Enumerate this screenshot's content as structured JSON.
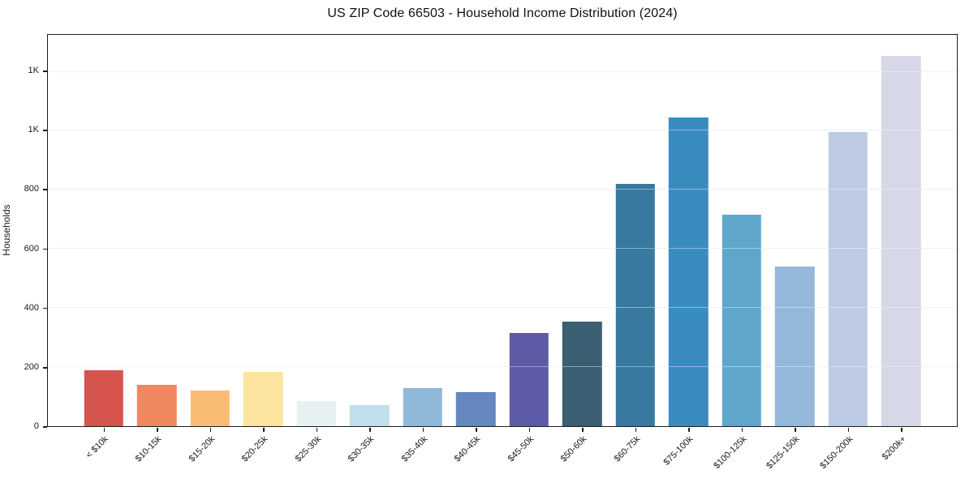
{
  "title": "US ZIP Code 66503 - Household Income Distribution (2024)",
  "y_axis_label": "Households",
  "chart_data": {
    "type": "bar",
    "title": "US ZIP Code 66503 - Household Income Distribution (2024)",
    "xlabel": "",
    "ylabel": "Households",
    "categories": [
      "< $10k",
      "$10-15k",
      "$15-20k",
      "$20-25k",
      "$25-30k",
      "$30-35k",
      "$35-40k",
      "$40-45k",
      "$45-50k",
      "$50-60k",
      "$60-75k",
      "$75-100k",
      "$100-125k",
      "$125-150k",
      "$150-200k",
      "$200k+"
    ],
    "values": [
      190,
      140,
      120,
      185,
      85,
      70,
      130,
      115,
      315,
      355,
      820,
      1045,
      715,
      540,
      995,
      1255
    ],
    "bar_colors": [
      "#d6544e",
      "#f1875f",
      "#fabc74",
      "#fce4a0",
      "#e8f1f2",
      "#bfe0ec",
      "#90b8d8",
      "#6487bf",
      "#5d5ba7",
      "#3a5e72",
      "#37799f",
      "#3a8cc0",
      "#5ea7cb",
      "#93b8d9",
      "#bccbe3",
      "#d7d8e7"
    ],
    "ylim": [
      0,
      1325
    ],
    "yticks": [
      {
        "value": 0,
        "label": "0"
      },
      {
        "value": 200,
        "label": "200"
      },
      {
        "value": 400,
        "label": "400"
      },
      {
        "value": 600,
        "label": "600"
      },
      {
        "value": 800,
        "label": "800"
      },
      {
        "value": 1000,
        "label": "1K"
      },
      {
        "value": 1200,
        "label": "1K"
      }
    ],
    "grid": "horizontal",
    "legend": "none"
  }
}
